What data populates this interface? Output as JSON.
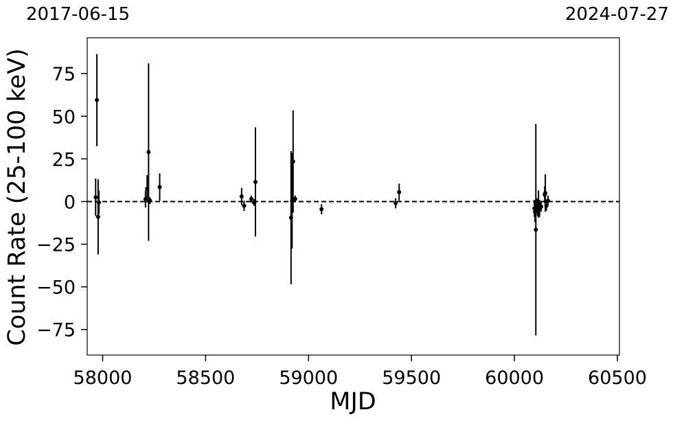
{
  "top_dates": {
    "left": "2017-06-15",
    "right": "2024-07-27"
  },
  "chart_data": {
    "type": "scatter",
    "title": "",
    "xlabel": "MJD",
    "ylabel": "Count Rate (25-100 keV)",
    "xlim": [
      57925,
      60510
    ],
    "ylim": [
      -90,
      96
    ],
    "xticks": [
      58000,
      58500,
      59000,
      59500,
      60000,
      60500
    ],
    "xtick_labels": [
      "58000",
      "58500",
      "59000",
      "59500",
      "60000",
      "60500"
    ],
    "yticks": [
      75,
      50,
      25,
      0,
      -25,
      -50,
      -75
    ],
    "ytick_labels": [
      "75",
      "50",
      "25",
      "0",
      "−25",
      "−50",
      "−75"
    ],
    "reference_line": {
      "y": 0,
      "style": "dashed"
    },
    "grid": false,
    "marker_color": "#000000",
    "points": [
      {
        "x": 57966,
        "y": 2.5,
        "err": 11
      },
      {
        "x": 57972,
        "y": 59.5,
        "err": 27
      },
      {
        "x": 57978,
        "y": -9,
        "err": 22
      },
      {
        "x": 57982,
        "y": -0.5,
        "err": 7
      },
      {
        "x": 58208,
        "y": 1.5,
        "err": 5
      },
      {
        "x": 58216,
        "y": 7.5,
        "err": 8
      },
      {
        "x": 58223,
        "y": 29,
        "err": 52
      },
      {
        "x": 58230,
        "y": 0.5,
        "err": 2
      },
      {
        "x": 58277,
        "y": 8.5,
        "err": 8
      },
      {
        "x": 58675,
        "y": 3,
        "err": 5
      },
      {
        "x": 58687,
        "y": -2.5,
        "err": 3
      },
      {
        "x": 58722,
        "y": 1.5,
        "err": 2
      },
      {
        "x": 58735,
        "y": -0.5,
        "err": 2
      },
      {
        "x": 58742,
        "y": 11.5,
        "err": 32
      },
      {
        "x": 58915,
        "y": -9.5,
        "err": 39
      },
      {
        "x": 58920,
        "y": 0.5,
        "err": 28
      },
      {
        "x": 58925,
        "y": 23.5,
        "err": 30
      },
      {
        "x": 58935,
        "y": 1.5,
        "err": 2
      },
      {
        "x": 59063,
        "y": -4.5,
        "err": 3
      },
      {
        "x": 59423,
        "y": -1,
        "err": 3
      },
      {
        "x": 59440,
        "y": 5.5,
        "err": 5
      },
      {
        "x": 60097,
        "y": -4,
        "err": 5
      },
      {
        "x": 60100,
        "y": -6,
        "err": 6
      },
      {
        "x": 60104,
        "y": -16.5,
        "err": 62
      },
      {
        "x": 60108,
        "y": -2,
        "err": 4
      },
      {
        "x": 60112,
        "y": -3.5,
        "err": 5
      },
      {
        "x": 60117,
        "y": -1.5,
        "err": 8
      },
      {
        "x": 60122,
        "y": -4,
        "err": 5
      },
      {
        "x": 60130,
        "y": -3,
        "err": 3
      },
      {
        "x": 60147,
        "y": 4,
        "err": 5
      },
      {
        "x": 60150,
        "y": 5,
        "err": 11
      },
      {
        "x": 60155,
        "y": -2.5,
        "err": 3
      },
      {
        "x": 60163,
        "y": 0.5,
        "err": 3
      }
    ]
  }
}
